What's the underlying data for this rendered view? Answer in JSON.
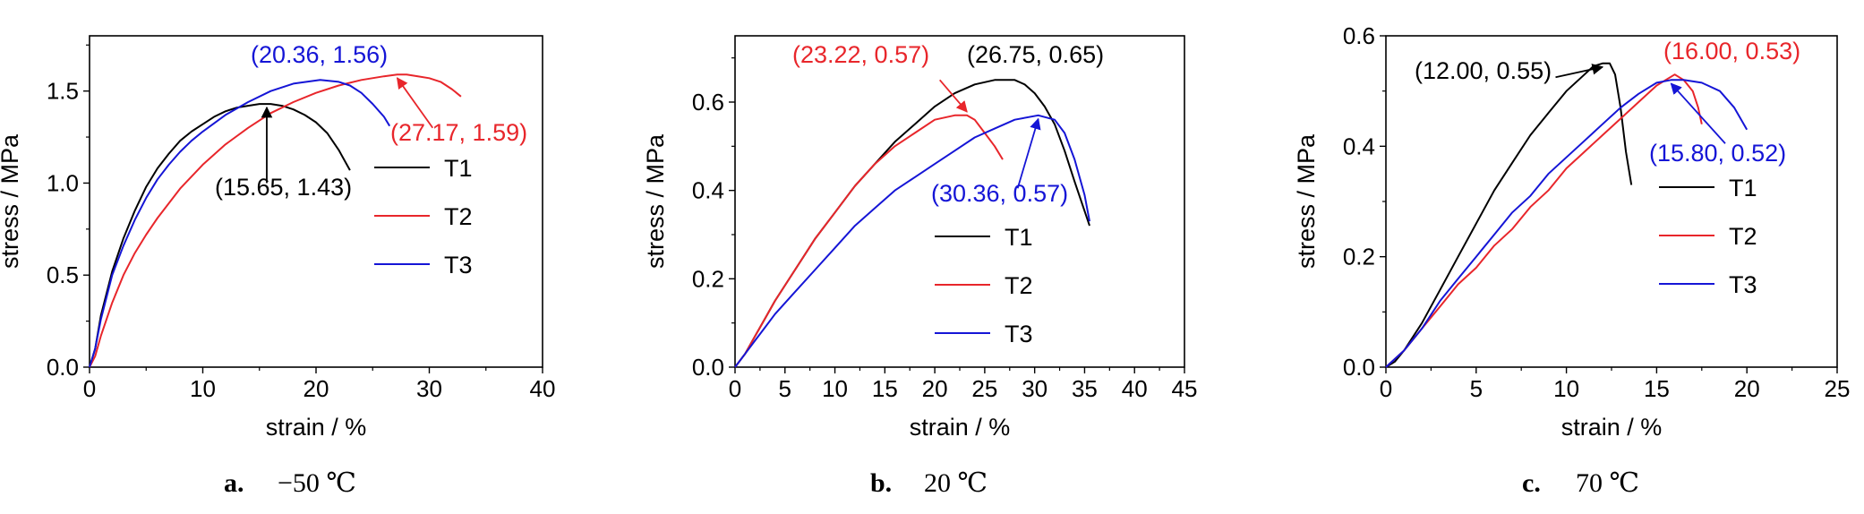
{
  "chart_data": [
    {
      "type": "line",
      "caption": {
        "letter": "a.",
        "text": "−50 ℃"
      },
      "xlabel": "strain / %",
      "ylabel": "stress / MPa",
      "xlim": [
        0,
        40
      ],
      "ylim": [
        0,
        1.8
      ],
      "xticks": [
        "0",
        "10",
        "20",
        "30",
        "40"
      ],
      "yticks": [
        "0.0",
        "0.5",
        "1.0",
        "1.5"
      ],
      "grid": false,
      "legend": "right",
      "series": [
        {
          "name": "T1",
          "color": "#000000",
          "x": [
            0,
            0.5,
            1,
            2,
            3,
            4,
            5,
            6,
            7,
            8,
            9,
            10,
            11,
            12,
            13,
            14,
            15,
            15.65,
            16,
            17,
            18,
            19,
            20,
            21,
            22,
            23
          ],
          "y": [
            0,
            0.1,
            0.28,
            0.52,
            0.7,
            0.85,
            0.98,
            1.08,
            1.16,
            1.23,
            1.28,
            1.32,
            1.36,
            1.39,
            1.41,
            1.42,
            1.43,
            1.43,
            1.43,
            1.42,
            1.4,
            1.37,
            1.33,
            1.27,
            1.18,
            1.07
          ]
        },
        {
          "name": "T2",
          "color": "#e8262b",
          "x": [
            0,
            0.5,
            1,
            2,
            3,
            4,
            5,
            6,
            8,
            10,
            12,
            14,
            16,
            18,
            20,
            22,
            24,
            26,
            27.17,
            28,
            29,
            30,
            31,
            32,
            32.8
          ],
          "y": [
            0,
            0.06,
            0.17,
            0.35,
            0.5,
            0.62,
            0.72,
            0.81,
            0.97,
            1.1,
            1.21,
            1.3,
            1.38,
            1.44,
            1.49,
            1.53,
            1.56,
            1.58,
            1.59,
            1.59,
            1.58,
            1.57,
            1.55,
            1.51,
            1.47
          ]
        },
        {
          "name": "T3",
          "color": "#1515d6",
          "x": [
            0,
            0.5,
            1,
            2,
            3,
            4,
            5,
            6,
            7,
            8,
            9,
            10,
            12,
            14,
            16,
            18,
            20.36,
            22,
            23,
            24,
            25,
            26,
            26.5
          ],
          "y": [
            0,
            0.1,
            0.26,
            0.5,
            0.66,
            0.8,
            0.92,
            1.02,
            1.1,
            1.17,
            1.23,
            1.28,
            1.37,
            1.44,
            1.5,
            1.54,
            1.56,
            1.55,
            1.53,
            1.49,
            1.43,
            1.36,
            1.31
          ]
        }
      ],
      "annotations": [
        {
          "text": "(20.36, 1.56)",
          "color": "#1515d6",
          "x": 20.36,
          "y": 1.56,
          "arrow": false
        },
        {
          "text": "(27.17, 1.59)",
          "color": "#e8262b",
          "x": 27.17,
          "y": 1.59,
          "arrow": true,
          "from": [
            30.3,
            1.3
          ]
        },
        {
          "text": "(15.65, 1.43)",
          "color": "#000000",
          "x": 15.65,
          "y": 1.43,
          "arrow": true,
          "from": [
            15.65,
            1.0
          ]
        }
      ]
    },
    {
      "type": "line",
      "caption": {
        "letter": "b.",
        "text": "20 ℃"
      },
      "xlabel": "strain / %",
      "ylabel": "stress / MPa",
      "xlim": [
        0,
        45
      ],
      "ylim": [
        0,
        0.75
      ],
      "xticks": [
        "0",
        "5",
        "10",
        "15",
        "20",
        "25",
        "30",
        "35",
        "40",
        "45"
      ],
      "yticks": [
        "0.0",
        "0.2",
        "0.4",
        "0.6"
      ],
      "grid": false,
      "legend": "right",
      "series": [
        {
          "name": "T1",
          "color": "#000000",
          "x": [
            0,
            1,
            2,
            3,
            4,
            6,
            8,
            10,
            12,
            14,
            16,
            18,
            20,
            22,
            24,
            26,
            26.75,
            28,
            29,
            30,
            31,
            32,
            33,
            34,
            35.5
          ],
          "y": [
            0,
            0.03,
            0.07,
            0.11,
            0.15,
            0.22,
            0.29,
            0.35,
            0.41,
            0.46,
            0.51,
            0.55,
            0.59,
            0.62,
            0.64,
            0.65,
            0.65,
            0.65,
            0.64,
            0.62,
            0.59,
            0.55,
            0.49,
            0.42,
            0.32
          ]
        },
        {
          "name": "T2",
          "color": "#e8262b",
          "x": [
            0,
            1,
            2,
            3,
            4,
            6,
            8,
            10,
            12,
            14,
            16,
            18,
            20,
            22,
            23.22,
            24,
            25,
            26,
            26.8
          ],
          "y": [
            0,
            0.03,
            0.07,
            0.11,
            0.15,
            0.22,
            0.29,
            0.35,
            0.41,
            0.46,
            0.5,
            0.53,
            0.56,
            0.57,
            0.57,
            0.56,
            0.53,
            0.5,
            0.47
          ]
        },
        {
          "name": "T3",
          "color": "#1515d6",
          "x": [
            0,
            1,
            2,
            3,
            4,
            6,
            8,
            10,
            12,
            14,
            16,
            18,
            20,
            22,
            24,
            26,
            28,
            30.36,
            32,
            33,
            34,
            35,
            35.5
          ],
          "y": [
            0,
            0.03,
            0.06,
            0.09,
            0.12,
            0.17,
            0.22,
            0.27,
            0.32,
            0.36,
            0.4,
            0.43,
            0.46,
            0.49,
            0.52,
            0.54,
            0.56,
            0.57,
            0.56,
            0.53,
            0.47,
            0.39,
            0.33
          ]
        }
      ],
      "annotations": [
        {
          "text": "(23.22, 0.57)",
          "color": "#e8262b",
          "x": 23.22,
          "y": 0.57,
          "arrow": true,
          "from": [
            20.5,
            0.65
          ]
        },
        {
          "text": "(26.75, 0.65)",
          "color": "#000000",
          "x": 26.75,
          "y": 0.65,
          "arrow": false
        },
        {
          "text": "(30.36, 0.57)",
          "color": "#1515d6",
          "x": 30.36,
          "y": 0.57,
          "arrow": true,
          "from": [
            28.3,
            0.405
          ]
        }
      ]
    },
    {
      "type": "line",
      "caption": {
        "letter": "c.",
        "text": "70 ℃"
      },
      "xlabel": "strain / %",
      "ylabel": "stress / MPa",
      "xlim": [
        0,
        25
      ],
      "ylim": [
        0,
        0.6
      ],
      "xticks": [
        "0",
        "5",
        "10",
        "15",
        "20",
        "25"
      ],
      "yticks": [
        "0.0",
        "0.2",
        "0.4",
        "0.6"
      ],
      "grid": false,
      "legend": "right",
      "series": [
        {
          "name": "T1",
          "color": "#000000",
          "x": [
            0,
            0.5,
            1,
            2,
            3,
            4,
            5,
            6,
            7,
            8,
            9,
            10,
            11,
            11.5,
            12,
            12.4,
            12.7,
            13,
            13.3,
            13.6
          ],
          "y": [
            0,
            0.01,
            0.03,
            0.08,
            0.14,
            0.2,
            0.26,
            0.32,
            0.37,
            0.42,
            0.46,
            0.5,
            0.53,
            0.545,
            0.55,
            0.55,
            0.53,
            0.47,
            0.39,
            0.33
          ]
        },
        {
          "name": "T2",
          "color": "#e8262b",
          "x": [
            0,
            1,
            2,
            3,
            4,
            5,
            6,
            7,
            8,
            9,
            10,
            11,
            12,
            13,
            14,
            15,
            16,
            16.5,
            17,
            17.3,
            17.5
          ],
          "y": [
            0,
            0.03,
            0.07,
            0.11,
            0.15,
            0.18,
            0.22,
            0.25,
            0.29,
            0.32,
            0.36,
            0.39,
            0.42,
            0.45,
            0.48,
            0.51,
            0.53,
            0.52,
            0.5,
            0.47,
            0.44
          ]
        },
        {
          "name": "T3",
          "color": "#1515d6",
          "x": [
            0,
            1,
            2,
            3,
            4,
            5,
            6,
            7,
            8,
            9,
            10,
            11,
            12,
            13,
            14,
            15,
            15.8,
            16.5,
            17.5,
            18.5,
            19.3,
            20
          ],
          "y": [
            0,
            0.03,
            0.07,
            0.12,
            0.16,
            0.2,
            0.24,
            0.28,
            0.31,
            0.35,
            0.38,
            0.41,
            0.44,
            0.47,
            0.495,
            0.515,
            0.52,
            0.52,
            0.515,
            0.5,
            0.47,
            0.43
          ]
        }
      ],
      "annotations": [
        {
          "text": "(12.00, 0.55)",
          "color": "#000000",
          "x": 12.0,
          "y": 0.55,
          "arrow": true,
          "from": [
            9.4,
            0.525
          ]
        },
        {
          "text": "(16.00, 0.53)",
          "color": "#e8262b",
          "x": 16.0,
          "y": 0.53,
          "arrow": false
        },
        {
          "text": "(15.80, 0.52)",
          "color": "#1515d6",
          "x": 15.8,
          "y": 0.52,
          "arrow": true,
          "from": [
            18.8,
            0.405
          ]
        }
      ]
    }
  ]
}
